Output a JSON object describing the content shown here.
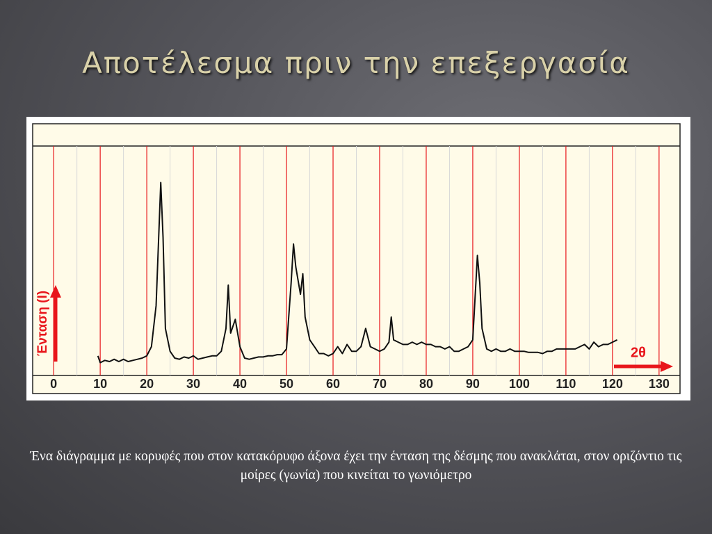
{
  "title": "Αποτέλεσμα πριν την επεξεργασία",
  "caption": "Ένα διάγραμμα με κορυφές που στον κατακόρυφο άξονα έχει την ένταση της δέσμης που ανακλάται, στον οριζόντιο τις μοίρες (γωνία) που κινείται το γωνιόμετρο",
  "chart_data": {
    "type": "line",
    "ylabel": "Ένταση (I)",
    "xlabel": "2θ",
    "color": "#111111",
    "gridcolor": "#e8161b",
    "minorgridcolor": "#d8d8d8",
    "xlim": [
      -4.5,
      134.5
    ],
    "ylim": [
      0,
      100
    ],
    "xticks": [
      0,
      10,
      20,
      30,
      40,
      50,
      60,
      70,
      80,
      90,
      100,
      110,
      120,
      130
    ],
    "xminorticks": [
      5,
      15,
      25,
      35,
      45,
      55,
      65,
      75,
      85,
      95,
      105,
      115,
      125
    ],
    "x": [
      9.5,
      10,
      11,
      12,
      13,
      14,
      15,
      16,
      17,
      18,
      19,
      20,
      21,
      22,
      23,
      23.5,
      24,
      25,
      26,
      27,
      28,
      29,
      30,
      31,
      32,
      33,
      34,
      35,
      36,
      37,
      37.5,
      38,
      39,
      40,
      41,
      42,
      43,
      44,
      45,
      46,
      47,
      48,
      49,
      50,
      51,
      51.5,
      52,
      53,
      53.5,
      54,
      55,
      56,
      57,
      58,
      59,
      60,
      61,
      62,
      63,
      64,
      65,
      66,
      67,
      68,
      69,
      70,
      71,
      72,
      72.5,
      73,
      74,
      75,
      76,
      77,
      78,
      79,
      80,
      81,
      82,
      83,
      84,
      85,
      86,
      87,
      88,
      89,
      90,
      91,
      91.5,
      92,
      93,
      94,
      95,
      96,
      97,
      98,
      99,
      100,
      101,
      102,
      103,
      104,
      105,
      106,
      107,
      108,
      109,
      110,
      111,
      112,
      113,
      114,
      115,
      116,
      117,
      118,
      119,
      120,
      121
    ],
    "values": [
      8,
      5,
      6,
      5.5,
      6.5,
      5.5,
      6.5,
      5.5,
      6,
      6.5,
      7,
      8,
      12,
      30,
      84,
      60,
      20,
      10,
      7,
      6.5,
      7.5,
      7,
      8,
      6.5,
      7,
      7.5,
      8,
      8,
      10,
      20,
      39,
      18,
      24,
      12,
      7,
      6.5,
      7,
      7.5,
      7.5,
      8,
      8,
      8.5,
      8.5,
      11,
      40,
      57,
      47,
      35,
      44,
      25,
      15,
      12,
      9,
      9,
      8,
      9,
      12,
      9,
      13,
      10,
      10,
      12,
      20,
      12,
      11,
      10,
      11,
      14,
      25,
      15,
      14,
      13,
      13,
      14,
      13,
      14,
      13,
      13,
      12,
      12,
      11,
      12,
      10,
      10,
      11,
      12,
      15,
      52,
      40,
      20,
      11,
      10,
      11,
      10,
      10,
      11,
      10,
      10,
      10,
      9.5,
      9.5,
      9.5,
      9,
      10,
      10,
      11,
      11,
      11,
      11,
      11,
      12,
      13,
      11,
      14,
      12,
      13,
      13,
      14,
      15
    ]
  }
}
